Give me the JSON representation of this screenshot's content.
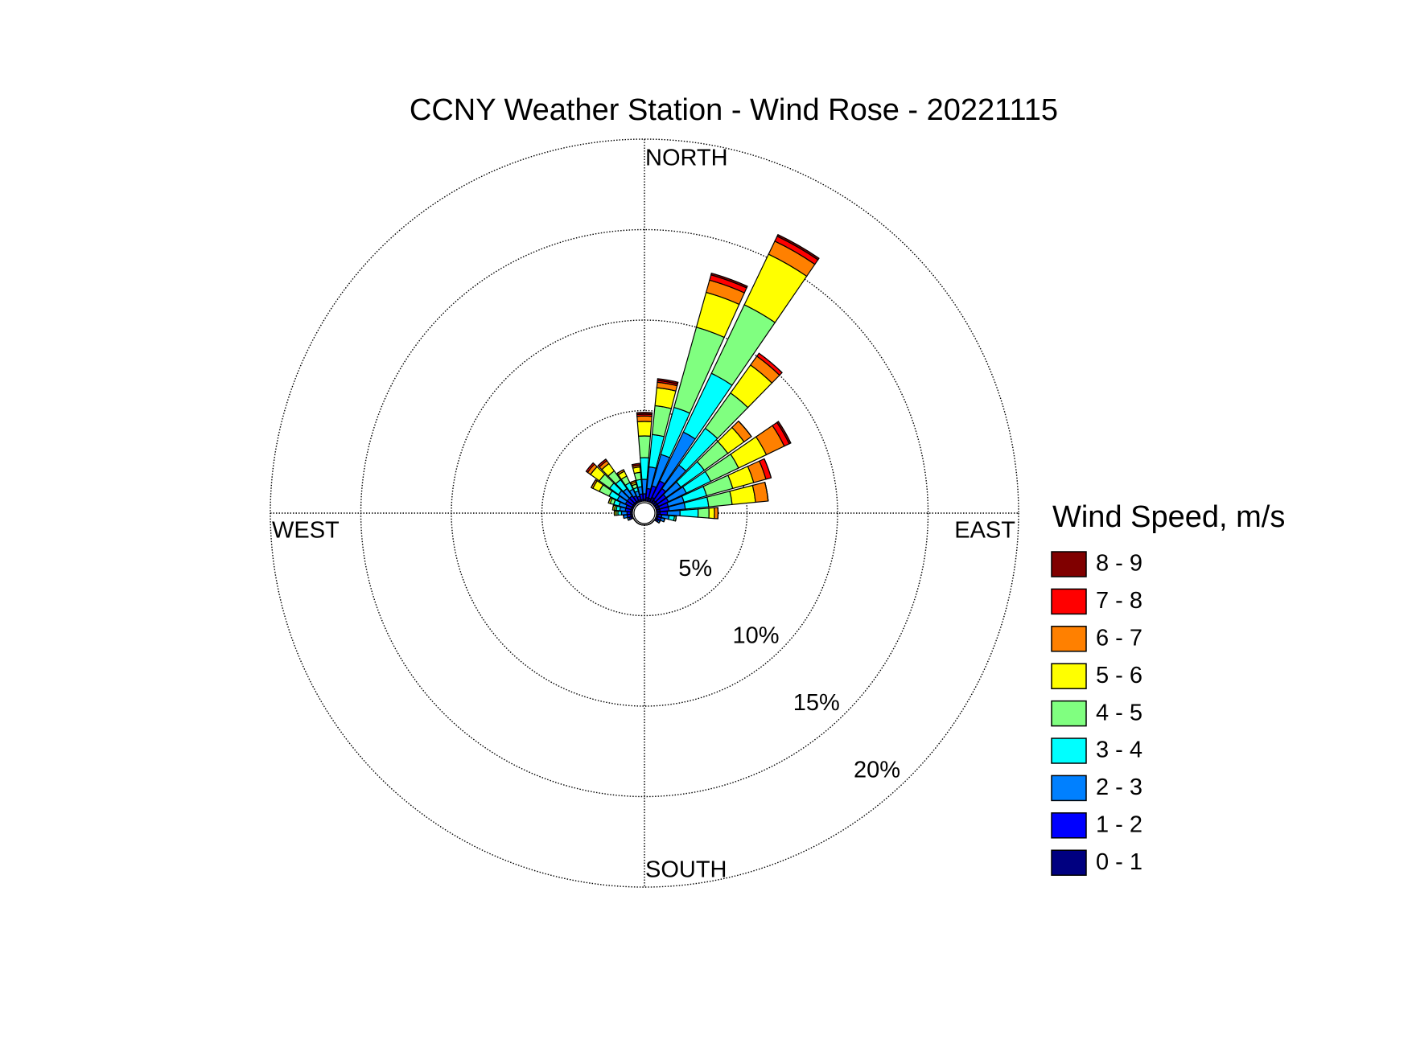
{
  "chart_data": {
    "type": "windrose",
    "title": "CCNY Weather Station - Wind Rose - 20221115",
    "direction_labels": {
      "north": "NORTH",
      "south": "SOUTH",
      "west": "WEST",
      "east": "EAST"
    },
    "legend_title": "Wind Speed, m/s",
    "x": [
      0,
      10,
      20,
      30,
      40,
      50,
      60,
      70,
      80,
      90,
      100,
      110,
      120,
      130,
      140,
      150,
      160,
      170,
      180,
      190,
      200,
      210,
      220,
      230,
      240,
      250,
      260,
      270,
      280,
      290,
      300,
      310,
      320,
      330,
      340,
      350
    ],
    "ylim": [
      0,
      20
    ],
    "yticks": [
      {
        "value": 5,
        "label": "5%"
      },
      {
        "value": 10,
        "label": "10%"
      },
      {
        "value": 15,
        "label": "15%"
      },
      {
        "value": 20,
        "label": "20%"
      }
    ],
    "grid": true,
    "series": [
      {
        "name": "0 - 1",
        "color": "#000080",
        "values": [
          0.1,
          0.2,
          0.2,
          0.3,
          0.2,
          0.2,
          0.2,
          0.2,
          0.2,
          0.2,
          0.1,
          0.1,
          0.1,
          0,
          0,
          0,
          0,
          0,
          0,
          0,
          0,
          0,
          0,
          0,
          0,
          0.1,
          0.1,
          0.1,
          0.1,
          0.1,
          0.1,
          0.1,
          0.1,
          0.1,
          0.1,
          0.1
        ]
      },
      {
        "name": "1 - 2",
        "color": "#0000ff",
        "values": [
          0.3,
          0.5,
          0.7,
          1.0,
          0.8,
          0.6,
          0.6,
          0.5,
          0.5,
          0.4,
          0.2,
          0.2,
          0.1,
          0,
          0,
          0,
          0,
          0,
          0,
          0,
          0,
          0,
          0,
          0,
          0,
          0.1,
          0.2,
          0.2,
          0.3,
          0.3,
          0.4,
          0.4,
          0.4,
          0.3,
          0.2,
          0.3
        ]
      },
      {
        "name": "2 - 3",
        "color": "#0080ff",
        "values": [
          0.8,
          1.2,
          1.8,
          3.0,
          1.6,
          1.0,
          1.1,
          0.9,
          0.9,
          0.7,
          0.4,
          0.2,
          0.1,
          0,
          0,
          0,
          0,
          0,
          0,
          0,
          0,
          0,
          0,
          0,
          0,
          0.1,
          0.2,
          0.3,
          0.3,
          0.4,
          0.5,
          0.6,
          0.5,
          0.4,
          0.3,
          0.4
        ]
      },
      {
        "name": "3 - 4",
        "color": "#00ffff",
        "values": [
          1.2,
          1.8,
          2.7,
          3.6,
          2.5,
          1.6,
          1.5,
          1.3,
          1.3,
          1.0,
          0.3,
          0,
          0,
          0,
          0,
          0,
          0,
          0,
          0,
          0,
          0,
          0,
          0,
          0,
          0,
          0,
          0,
          0.2,
          0.2,
          0.3,
          0.5,
          0.6,
          0.6,
          0.4,
          0.2,
          0.4
        ]
      },
      {
        "name": "4 - 5",
        "color": "#80ff80",
        "values": [
          1.2,
          1.6,
          4.6,
          4.2,
          2.4,
          1.6,
          1.7,
          1.5,
          1.3,
          0.6,
          0.1,
          0,
          0,
          0,
          0,
          0,
          0,
          0,
          0,
          0,
          0,
          0,
          0,
          0,
          0,
          0,
          0,
          0.1,
          0.1,
          0.2,
          0.6,
          0.7,
          0.6,
          0.4,
          0.2,
          0.4
        ]
      },
      {
        "name": "5 - 6",
        "color": "#ffff00",
        "values": [
          0.8,
          1.0,
          2.0,
          3.1,
          1.9,
          1.1,
          1.7,
          1.2,
          1.3,
          0.3,
          0,
          0,
          0,
          0,
          0,
          0,
          0,
          0,
          0,
          0,
          0,
          0,
          0,
          0,
          0,
          0,
          0,
          0.1,
          0.1,
          0.1,
          0.4,
          0.6,
          0.5,
          0.3,
          0.1,
          0.3
        ]
      },
      {
        "name": "6 - 7",
        "color": "#ff8000",
        "values": [
          0.3,
          0.3,
          0.7,
          0.8,
          0.6,
          0.5,
          1.1,
          0.7,
          0.7,
          0.2,
          0,
          0,
          0,
          0,
          0,
          0,
          0,
          0,
          0,
          0,
          0,
          0,
          0,
          0,
          0,
          0,
          0,
          0,
          0,
          0,
          0.1,
          0.2,
          0.2,
          0.1,
          0.1,
          0.1
        ]
      },
      {
        "name": "7 - 8",
        "color": "#ff0000",
        "values": [
          0.1,
          0.1,
          0.3,
          0.3,
          0.2,
          0,
          0.3,
          0.3,
          0,
          0,
          0,
          0,
          0,
          0,
          0,
          0,
          0,
          0,
          0,
          0,
          0,
          0,
          0,
          0,
          0,
          0,
          0,
          0,
          0,
          0,
          0,
          0.1,
          0.1,
          0,
          0,
          0
        ]
      },
      {
        "name": "8 - 9",
        "color": "#800000",
        "values": [
          0.1,
          0.1,
          0.1,
          0.1,
          0,
          0,
          0.1,
          0,
          0,
          0,
          0,
          0,
          0,
          0,
          0,
          0,
          0,
          0,
          0,
          0,
          0,
          0,
          0,
          0,
          0,
          0,
          0,
          0,
          0,
          0,
          0,
          0,
          0,
          0,
          0,
          0.1
        ]
      }
    ]
  }
}
